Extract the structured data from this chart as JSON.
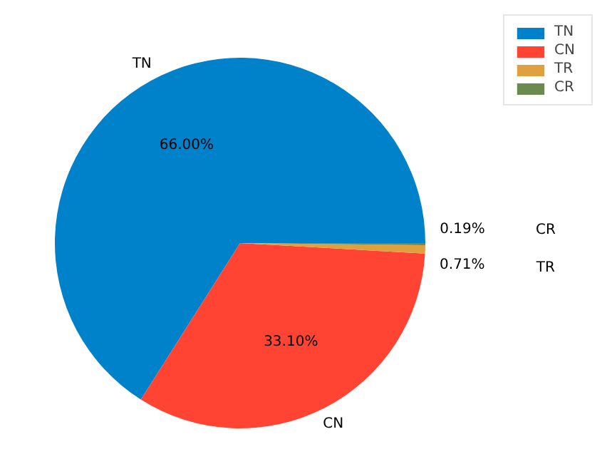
{
  "chart_data": {
    "type": "pie",
    "categories": [
      "TN",
      "CN",
      "TR",
      "CR"
    ],
    "values": [
      66.0,
      33.1,
      0.71,
      0.19
    ],
    "value_labels": [
      "66.00%",
      "33.10%",
      "0.71%",
      "0.19%"
    ],
    "colors": [
      "#0082cb",
      "#ff4433",
      "#e0a040",
      "#6a8a50"
    ],
    "legend": "top right"
  }
}
